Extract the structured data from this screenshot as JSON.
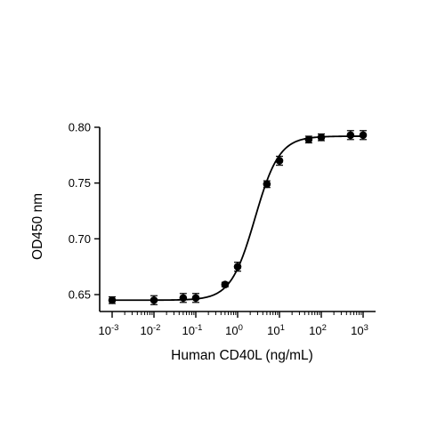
{
  "chart_data": {
    "type": "scatter",
    "title": "",
    "xlabel": "Human CD40L (ng/mL)",
    "ylabel": "OD450 nm",
    "x_scale": "log",
    "xlim": [
      0.001,
      1000
    ],
    "ylim": [
      0.645,
      0.8
    ],
    "x_ticks": [
      {
        "base": "10",
        "exp": "-3",
        "value": 0.001
      },
      {
        "base": "10",
        "exp": "-2",
        "value": 0.01
      },
      {
        "base": "10",
        "exp": "-1",
        "value": 0.1
      },
      {
        "base": "10",
        "exp": "0",
        "value": 1
      },
      {
        "base": "10",
        "exp": "1",
        "value": 10
      },
      {
        "base": "10",
        "exp": "2",
        "value": 100
      },
      {
        "base": "10",
        "exp": "3",
        "value": 1000
      }
    ],
    "y_ticks": [
      "0.65",
      "0.70",
      "0.75",
      "0.80"
    ],
    "y_tick_values": [
      0.65,
      0.7,
      0.75,
      0.8
    ],
    "grid": false,
    "legend": "none",
    "series": [
      {
        "marker": "circle",
        "color": "#000000",
        "points": [
          {
            "x": 0.001,
            "y": 0.645,
            "err": 0.003
          },
          {
            "x": 0.01,
            "y": 0.645,
            "err": 0.004
          },
          {
            "x": 0.05,
            "y": 0.647,
            "err": 0.004
          },
          {
            "x": 0.1,
            "y": 0.647,
            "err": 0.004
          },
          {
            "x": 0.5,
            "y": 0.659,
            "err": 0.002
          },
          {
            "x": 1,
            "y": 0.675,
            "err": 0.004
          },
          {
            "x": 5,
            "y": 0.749,
            "err": 0.003
          },
          {
            "x": 10,
            "y": 0.77,
            "err": 0.004
          },
          {
            "x": 50,
            "y": 0.789,
            "err": 0.003
          },
          {
            "x": 100,
            "y": 0.791,
            "err": 0.003
          },
          {
            "x": 500,
            "y": 0.793,
            "err": 0.004
          },
          {
            "x": 1000,
            "y": 0.793,
            "err": 0.004
          }
        ]
      }
    ],
    "fit": {
      "type": "4PL",
      "bottom": 0.645,
      "top": 0.792,
      "ec50": 2.6,
      "hill": 1.5
    }
  }
}
